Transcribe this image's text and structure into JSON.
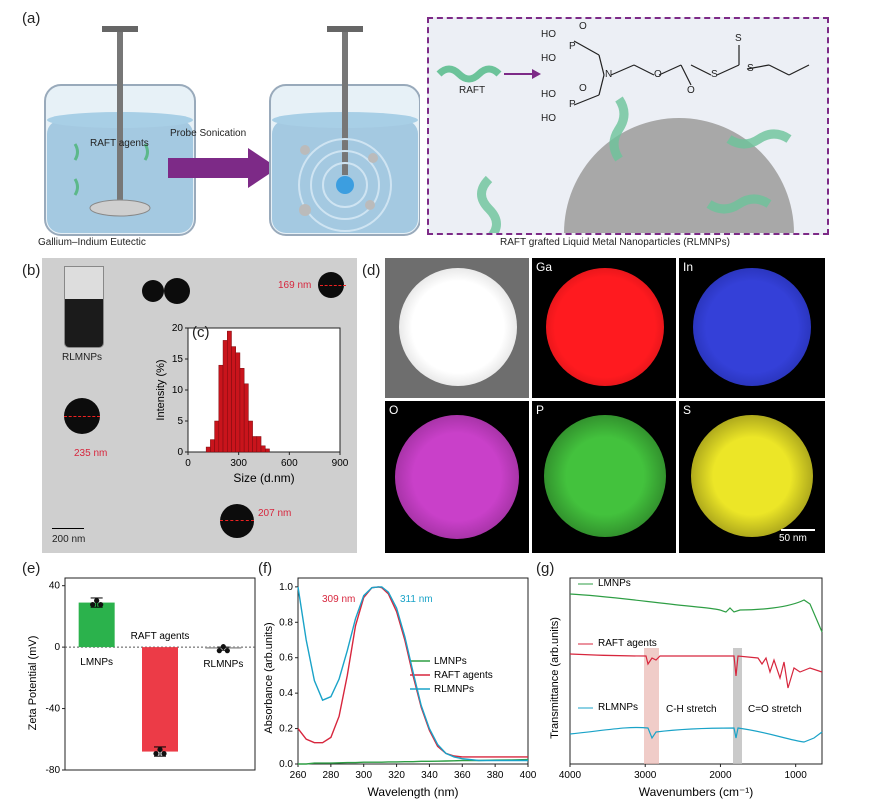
{
  "panel_a": {
    "label": "(a)",
    "raft_agents_label": "RAFT agents",
    "arrow_label": "Probe Sonication",
    "beaker_left_caption": "Gallium–Indium Eutectic",
    "box_caption": "RAFT grafted Liquid Metal Nanoparticles (RLMNPs)",
    "raft_label": "RAFT",
    "chem": {
      "ho1": "HO",
      "ho2": "HO",
      "ho3": "HO",
      "ho4": "HO",
      "p1": "P",
      "p2": "P",
      "o1": "O",
      "o2": "O",
      "o3": "O",
      "o4": "O",
      "n": "N",
      "s1": "S",
      "s2": "S",
      "s3": "S"
    }
  },
  "panel_b": {
    "label": "(b)",
    "vial_label": "RLMNPs",
    "sizes": [
      "169 nm",
      "235 nm",
      "207 nm"
    ],
    "scale_bar": "200 nm"
  },
  "panel_c": {
    "label": "(c)",
    "chart_data": {
      "type": "bar",
      "xlabel": "Size (d.nm)",
      "ylabel": "Intensity (%)",
      "xlim": [
        0,
        900
      ],
      "ylim": [
        0,
        20
      ],
      "xticks": [
        "0",
        "300",
        "600",
        "900"
      ],
      "yticks": [
        "0",
        "5",
        "10",
        "15",
        "20"
      ],
      "x": [
        120,
        145,
        170,
        195,
        220,
        245,
        270,
        295,
        320,
        345,
        370,
        395,
        420,
        445,
        470
      ],
      "values": [
        0.8,
        2.0,
        5.0,
        14.0,
        18.0,
        19.5,
        17.0,
        16.0,
        13.5,
        11.0,
        5.0,
        2.5,
        2.5,
        1.0,
        0.5
      ],
      "color": "#c9141c"
    }
  },
  "panel_d": {
    "label": "(d)",
    "maps": [
      {
        "label": "",
        "color": "#ffffff"
      },
      {
        "label": "Ga",
        "color": "#e8101a"
      },
      {
        "label": "In",
        "color": "#2a36c8"
      },
      {
        "label": "O",
        "color": "#c43cc4"
      },
      {
        "label": "P",
        "color": "#3fbf3a"
      },
      {
        "label": "S",
        "color": "#e6e21a"
      }
    ],
    "scale_bar": "50 nm"
  },
  "panel_e": {
    "label": "(e)",
    "chart_data": {
      "type": "bar",
      "ylabel": "Zeta Potential (mV)",
      "categories": [
        "LMNPs",
        "RAFT agents",
        "RLMNPs"
      ],
      "values": [
        29,
        -68,
        -1
      ],
      "errors": [
        3,
        3,
        1
      ],
      "colors": [
        "#2bb24c",
        "#ec3b47",
        "#9a9a9a"
      ],
      "ylim": [
        -80,
        45
      ],
      "yticks": [
        "40",
        "0",
        "-40",
        "-80"
      ]
    }
  },
  "panel_f": {
    "label": "(f)",
    "peak1": "309 nm",
    "peak2": "311 nm",
    "chart_data": {
      "type": "line",
      "xlabel": "Wavelength (nm)",
      "ylabel": "Absorbance (arb.units)",
      "xlim": [
        260,
        400
      ],
      "ylim": [
        0,
        1.05
      ],
      "xticks": [
        "260",
        "280",
        "300",
        "320",
        "340",
        "360",
        "380",
        "400"
      ],
      "yticks": [
        "0.0",
        "0.2",
        "0.4",
        "0.6",
        "0.8",
        "1.0"
      ],
      "x": [
        260,
        265,
        270,
        275,
        280,
        285,
        290,
        295,
        300,
        305,
        309,
        311,
        315,
        320,
        325,
        330,
        335,
        340,
        345,
        350,
        355,
        360,
        370,
        380,
        390,
        400
      ],
      "series": [
        {
          "name": "LMNPs",
          "color": "#2e9e44",
          "values": [
            0.0,
            0.0,
            0.005,
            0.005,
            0.005,
            0.007,
            0.008,
            0.008,
            0.01,
            0.01,
            0.01,
            0.01,
            0.012,
            0.012,
            0.013,
            0.013,
            0.015,
            0.015,
            0.016,
            0.017,
            0.018,
            0.02,
            0.02,
            0.022,
            0.023,
            0.025
          ]
        },
        {
          "name": "RAFT agents",
          "color": "#d7263d",
          "values": [
            0.2,
            0.14,
            0.12,
            0.12,
            0.15,
            0.27,
            0.5,
            0.78,
            0.94,
            0.995,
            1.0,
            0.995,
            0.96,
            0.86,
            0.7,
            0.5,
            0.32,
            0.19,
            0.1,
            0.06,
            0.045,
            0.04,
            0.04,
            0.04,
            0.04,
            0.04
          ]
        },
        {
          "name": "RLMNPs",
          "color": "#1aa3c8",
          "values": [
            1.0,
            0.7,
            0.47,
            0.36,
            0.38,
            0.48,
            0.64,
            0.82,
            0.95,
            0.995,
            1.0,
            1.0,
            0.97,
            0.88,
            0.72,
            0.52,
            0.33,
            0.2,
            0.11,
            0.06,
            0.04,
            0.03,
            0.02,
            0.02,
            0.02,
            0.02
          ]
        }
      ]
    }
  },
  "panel_g": {
    "label": "(g)",
    "series_labels": [
      "LMNPs",
      "RAFT agents",
      "RLMNPs"
    ],
    "band1": "C-H stretch",
    "band2": "C=O stretch",
    "chart_data": {
      "type": "line",
      "xlabel": "Wavenumbers (cm⁻¹)",
      "ylabel": "Transmittance (arb.units)",
      "xlim": [
        4000,
        650
      ],
      "xticks": [
        "4000",
        "3000",
        "2000",
        "1000"
      ],
      "series": [
        {
          "name": "LMNPs",
          "color": "#2e9e44"
        },
        {
          "name": "RAFT agents",
          "color": "#d7263d"
        },
        {
          "name": "RLMNPs",
          "color": "#1aa3c8"
        }
      ]
    }
  }
}
